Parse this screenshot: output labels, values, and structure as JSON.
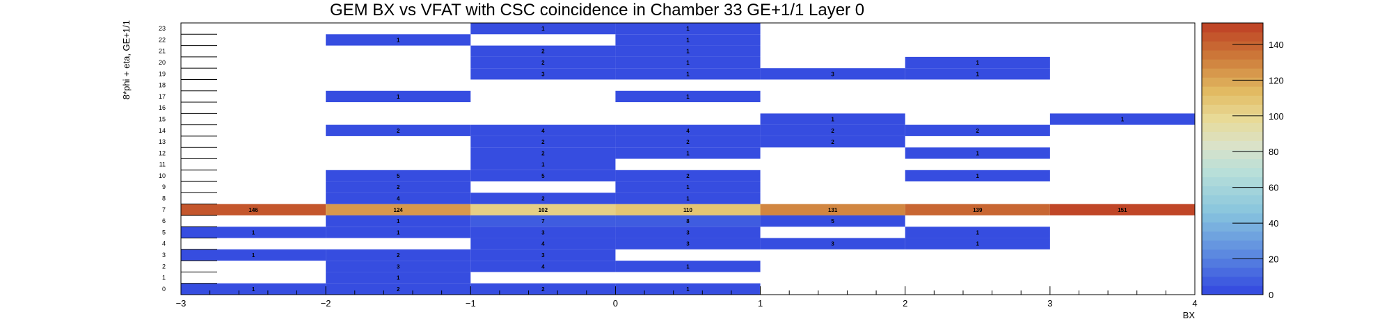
{
  "chart_data": {
    "type": "heatmap",
    "title": "GEM BX vs VFAT with CSC coincidence in Chamber 33 GE+1/1 Layer 0",
    "xlabel": "BX",
    "ylabel": "8*phi + eta, GE+1/1",
    "xlim": [
      -3,
      4
    ],
    "ylim": [
      0,
      24
    ],
    "x_ticks": [
      "−3",
      "−2",
      "−1",
      "0",
      "1",
      "2",
      "3",
      "4"
    ],
    "y_ticks": [
      "0",
      "1",
      "2",
      "3",
      "4",
      "5",
      "6",
      "7",
      "8",
      "9",
      "10",
      "11",
      "12",
      "13",
      "14",
      "15",
      "16",
      "17",
      "18",
      "19",
      "20",
      "21",
      "22",
      "23"
    ],
    "x_bins": [
      -3,
      -2,
      -1,
      0,
      1,
      2,
      3
    ],
    "colorbar": {
      "min": 0,
      "max": 152,
      "ticks": [
        "0",
        "20",
        "40",
        "60",
        "80",
        "100",
        "120",
        "140"
      ]
    },
    "cells": [
      [
        -3,
        7,
        146
      ],
      [
        -2,
        7,
        124
      ],
      [
        -1,
        7,
        102
      ],
      [
        0,
        7,
        110
      ],
      [
        1,
        7,
        131
      ],
      [
        2,
        7,
        139
      ],
      [
        3,
        7,
        151
      ],
      [
        -1,
        23,
        1
      ],
      [
        0,
        23,
        1
      ],
      [
        -2,
        22,
        1
      ],
      [
        0,
        22,
        1
      ],
      [
        -1,
        21,
        2
      ],
      [
        0,
        21,
        1
      ],
      [
        -1,
        20,
        2
      ],
      [
        0,
        20,
        1
      ],
      [
        2,
        20,
        1
      ],
      [
        -1,
        19,
        3
      ],
      [
        0,
        19,
        1
      ],
      [
        1,
        19,
        3
      ],
      [
        2,
        19,
        1
      ],
      [
        -2,
        17,
        1
      ],
      [
        0,
        17,
        1
      ],
      [
        1,
        15,
        1
      ],
      [
        3,
        15,
        1
      ],
      [
        -2,
        14,
        2
      ],
      [
        -1,
        14,
        4
      ],
      [
        0,
        14,
        4
      ],
      [
        1,
        14,
        2
      ],
      [
        2,
        14,
        2
      ],
      [
        -1,
        13,
        2
      ],
      [
        0,
        13,
        2
      ],
      [
        1,
        13,
        2
      ],
      [
        -1,
        12,
        2
      ],
      [
        0,
        12,
        1
      ],
      [
        2,
        12,
        1
      ],
      [
        -1,
        11,
        1
      ],
      [
        -2,
        10,
        5
      ],
      [
        -1,
        10,
        5
      ],
      [
        0,
        10,
        2
      ],
      [
        2,
        10,
        1
      ],
      [
        -2,
        9,
        2
      ],
      [
        0,
        9,
        1
      ],
      [
        -2,
        8,
        4
      ],
      [
        -1,
        8,
        2
      ],
      [
        0,
        8,
        1
      ],
      [
        -2,
        6,
        1
      ],
      [
        -1,
        6,
        7
      ],
      [
        0,
        6,
        8
      ],
      [
        1,
        6,
        5
      ],
      [
        -3,
        5,
        1
      ],
      [
        -2,
        5,
        1
      ],
      [
        -1,
        5,
        3
      ],
      [
        0,
        5,
        3
      ],
      [
        2,
        5,
        1
      ],
      [
        -1,
        4,
        4
      ],
      [
        0,
        4,
        3
      ],
      [
        1,
        4,
        3
      ],
      [
        2,
        4,
        1
      ],
      [
        -3,
        3,
        1
      ],
      [
        -2,
        3,
        2
      ],
      [
        -1,
        3,
        3
      ],
      [
        -2,
        2,
        3
      ],
      [
        -1,
        2,
        4
      ],
      [
        0,
        2,
        1
      ],
      [
        -2,
        1,
        1
      ],
      [
        -3,
        0,
        1
      ],
      [
        -2,
        0,
        2
      ],
      [
        -1,
        0,
        2
      ],
      [
        0,
        0,
        1
      ]
    ]
  }
}
